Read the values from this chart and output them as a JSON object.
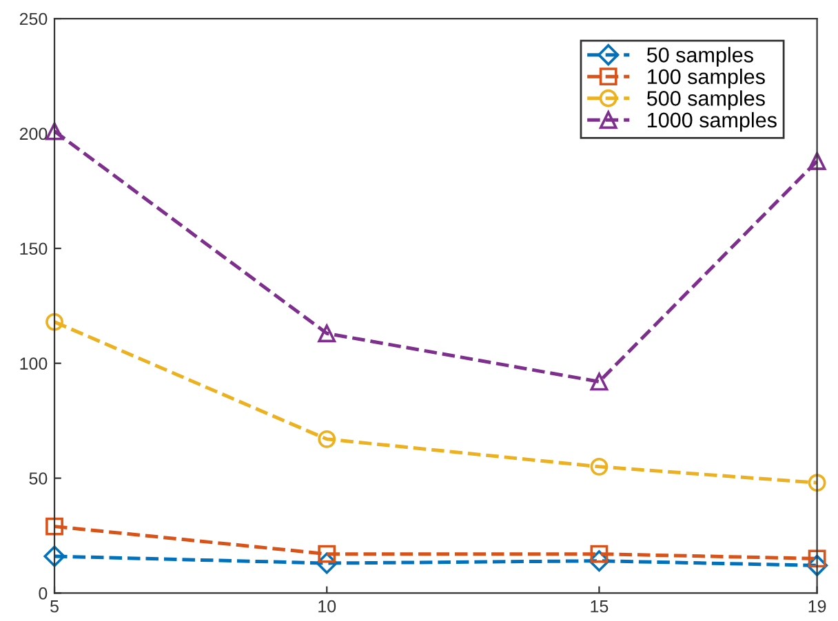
{
  "chart_data": {
    "type": "line",
    "x": [
      5,
      10,
      15,
      19
    ],
    "xlim": [
      5,
      19
    ],
    "xticks": [
      5,
      10,
      15,
      19
    ],
    "ylim": [
      0,
      250
    ],
    "yticks": [
      0,
      50,
      100,
      150,
      200,
      250
    ],
    "grid": false,
    "legend": "top right",
    "line_style": "dashed",
    "series": [
      {
        "name": "50 samples",
        "color": "#0072bd",
        "marker": "diamond",
        "values": [
          16,
          13,
          14,
          12
        ]
      },
      {
        "name": "100 samples",
        "color": "#d95319",
        "marker": "square",
        "values": [
          29,
          17,
          17,
          15
        ]
      },
      {
        "name": "500 samples",
        "color": "#edb120",
        "marker": "circle",
        "values": [
          118,
          67,
          55,
          48
        ]
      },
      {
        "name": "1000 samples",
        "color": "#7e2f8e",
        "marker": "triangle",
        "values": [
          201,
          113,
          92,
          188
        ]
      }
    ]
  }
}
